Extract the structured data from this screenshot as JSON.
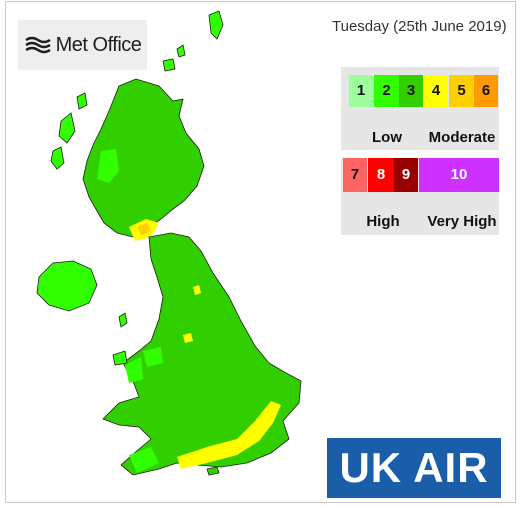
{
  "logo": {
    "brand_name": "Met Office",
    "icon": "met-office-wave-icon"
  },
  "date": "Tuesday (25th June 2019)",
  "legend": {
    "low_moderate": [
      {
        "value": "1",
        "color": "#9cff9c"
      },
      {
        "value": "2",
        "color": "#31ff00"
      },
      {
        "value": "3",
        "color": "#31cf00"
      },
      {
        "value": "4",
        "color": "#ffff00"
      },
      {
        "value": "5",
        "color": "#ffcf00"
      },
      {
        "value": "6",
        "color": "#ff9a00"
      }
    ],
    "high_veryhigh": [
      {
        "value": "7",
        "color": "#ff6464"
      },
      {
        "value": "8",
        "color": "#ff0000"
      },
      {
        "value": "9",
        "color": "#990000"
      },
      {
        "value": "10",
        "color": "#ce30ff"
      }
    ],
    "labels": {
      "low": "Low",
      "moderate": "Moderate",
      "high": "High",
      "very_high": "Very High"
    }
  },
  "map": {
    "predominant_band": "3",
    "band_colors": {
      "band_2": "#31ff00",
      "band_3": "#31cf00",
      "band_4": "#ffff00",
      "band_5": "#ffcf00"
    }
  },
  "brand_badge": "UK AIR"
}
